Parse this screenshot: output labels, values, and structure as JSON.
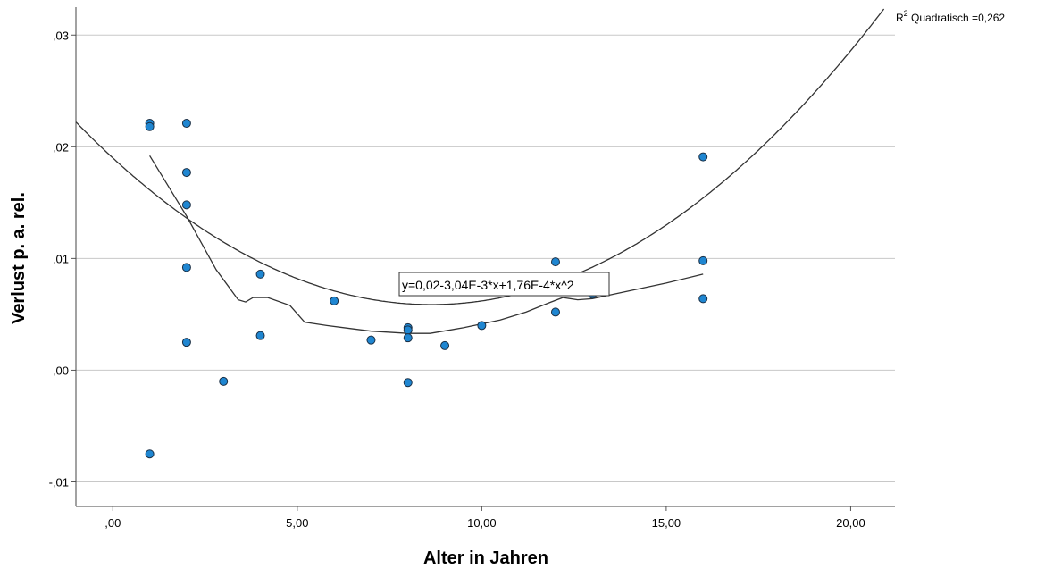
{
  "chart_data": {
    "type": "scatter",
    "xlabel": "Alter in Jahren",
    "ylabel": "Verlust p. a. rel.",
    "xlim": [
      -1.0,
      21.2
    ],
    "ylim": [
      -0.0122,
      0.0325
    ],
    "xticks": [
      0,
      5,
      10,
      15,
      20
    ],
    "xtick_labels": [
      ",00",
      "5,00",
      "10,00",
      "15,00",
      "20,00"
    ],
    "yticks": [
      -0.01,
      0.0,
      0.01,
      0.02,
      0.03
    ],
    "ytick_labels": [
      "-,01",
      ",00",
      ",01",
      ",02",
      ",03"
    ],
    "grid": "horizontal",
    "points": [
      {
        "x": 1,
        "y": 0.0221
      },
      {
        "x": 1,
        "y": 0.0218
      },
      {
        "x": 1,
        "y": -0.0075
      },
      {
        "x": 2,
        "y": 0.0221
      },
      {
        "x": 2,
        "y": 0.0177
      },
      {
        "x": 2,
        "y": 0.0148
      },
      {
        "x": 2,
        "y": 0.0092
      },
      {
        "x": 2,
        "y": 0.0025
      },
      {
        "x": 3,
        "y": -0.001
      },
      {
        "x": 4,
        "y": 0.0086
      },
      {
        "x": 4,
        "y": 0.0031
      },
      {
        "x": 6,
        "y": 0.0062
      },
      {
        "x": 7,
        "y": 0.0027
      },
      {
        "x": 8,
        "y": 0.0038
      },
      {
        "x": 8,
        "y": 0.0036
      },
      {
        "x": 8,
        "y": 0.0029
      },
      {
        "x": 8,
        "y": -0.0011
      },
      {
        "x": 9,
        "y": 0.0022
      },
      {
        "x": 10,
        "y": 0.004
      },
      {
        "x": 12,
        "y": 0.0097
      },
      {
        "x": 12,
        "y": 0.0052
      },
      {
        "x": 13,
        "y": 0.0068
      },
      {
        "x": 16,
        "y": 0.0191
      },
      {
        "x": 16,
        "y": 0.0098
      },
      {
        "x": 16,
        "y": 0.0064
      }
    ],
    "fit": {
      "a": 0.019,
      "b": -0.00304,
      "c": 0.000176
    },
    "loess": [
      {
        "x": 1,
        "y": 0.0192
      },
      {
        "x": 2,
        "y": 0.0138
      },
      {
        "x": 2.8,
        "y": 0.009
      },
      {
        "x": 3.4,
        "y": 0.0063
      },
      {
        "x": 3.6,
        "y": 0.0061
      },
      {
        "x": 3.8,
        "y": 0.0065
      },
      {
        "x": 4.2,
        "y": 0.0065
      },
      {
        "x": 4.8,
        "y": 0.0058
      },
      {
        "x": 5.2,
        "y": 0.0043
      },
      {
        "x": 5.8,
        "y": 0.004
      },
      {
        "x": 7,
        "y": 0.0035
      },
      {
        "x": 8,
        "y": 0.0033
      },
      {
        "x": 8.6,
        "y": 0.0033
      },
      {
        "x": 9.5,
        "y": 0.0038
      },
      {
        "x": 10.5,
        "y": 0.0045
      },
      {
        "x": 11.2,
        "y": 0.0052
      },
      {
        "x": 11.8,
        "y": 0.006
      },
      {
        "x": 12.2,
        "y": 0.0065
      },
      {
        "x": 12.6,
        "y": 0.0063
      },
      {
        "x": 13,
        "y": 0.0064
      },
      {
        "x": 14,
        "y": 0.0071
      },
      {
        "x": 15,
        "y": 0.0078
      },
      {
        "x": 16,
        "y": 0.0086
      }
    ],
    "r2_prefix": "R",
    "r2_sup": "2",
    "r2_suffix": " Quadratisch =0,262",
    "equation": "y=0,02-3,04E-3*x+1,76E-4*x^2",
    "point_color": "#1f86d1",
    "point_stroke": "#1a2f45",
    "line_color": "#333333",
    "grid_color": "#c8c8c8"
  }
}
